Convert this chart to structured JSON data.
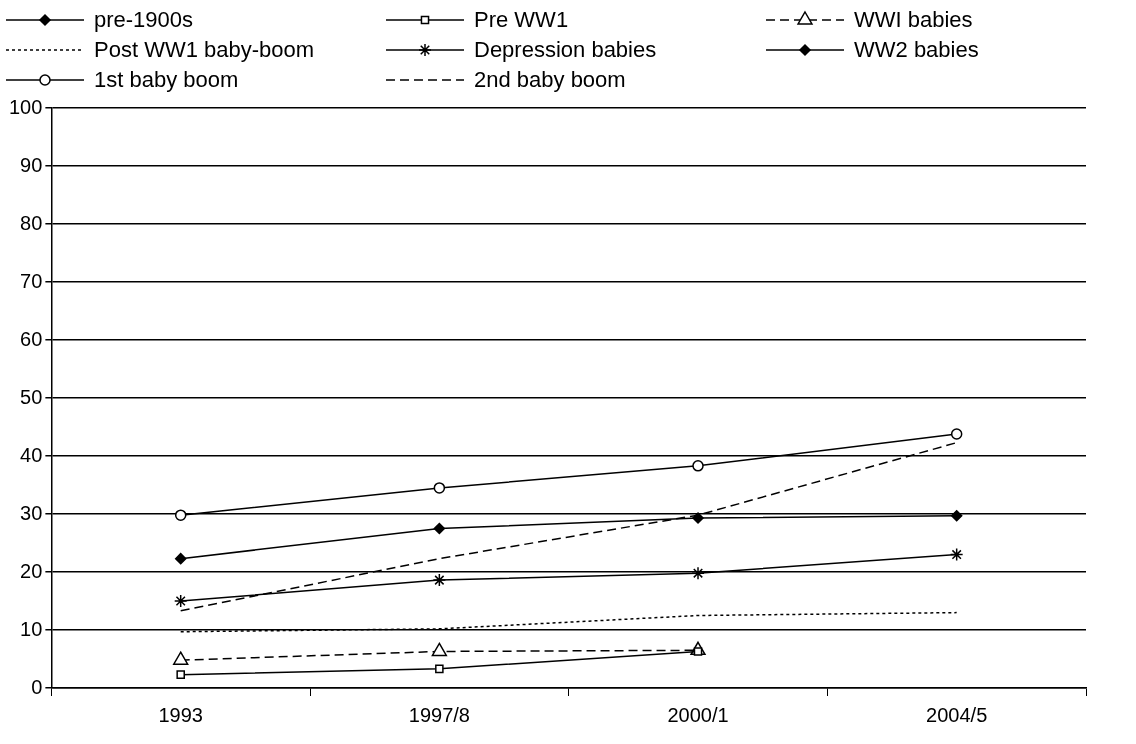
{
  "chart_data": {
    "type": "line",
    "categories": [
      "1993",
      "1997/8",
      "2000/1",
      "2004/5"
    ],
    "series": [
      {
        "name": "pre-1900s",
        "color": "#000000",
        "marker": "diamond",
        "line_style": "solid",
        "values": [
          null,
          null,
          null,
          null
        ]
      },
      {
        "name": "Pre WW1",
        "color": "#000000",
        "marker": "square",
        "line_style": "solid",
        "values": [
          2.3,
          3.3,
          6.3,
          null
        ]
      },
      {
        "name": "WWI babies",
        "color": "#000000",
        "marker": "triangle",
        "line_style": "dashed",
        "values": [
          4.8,
          6.3,
          6.5,
          null
        ]
      },
      {
        "name": "Post WW1 baby-boom",
        "color": "#000000",
        "marker": "none",
        "line_style": "dotted",
        "values": [
          9.7,
          10.2,
          12.5,
          13
        ]
      },
      {
        "name": "Depression babies",
        "color": "#000000",
        "marker": "cross",
        "line_style": "solid",
        "values": [
          15,
          18.6,
          19.8,
          23
        ]
      },
      {
        "name": "WW2 babies",
        "color": "#000000",
        "marker": "diamond",
        "line_style": "solid",
        "values": [
          22.3,
          27.5,
          29.3,
          29.7
        ]
      },
      {
        "name": "1st baby boom",
        "color": "#000000",
        "marker": "circle",
        "line_style": "solid",
        "values": [
          29.8,
          34.5,
          38.3,
          43.8
        ]
      },
      {
        "name": "2nd baby boom",
        "color": "#000000",
        "marker": "none",
        "line_style": "dashed",
        "values": [
          13.3,
          22.3,
          29.8,
          42.3
        ]
      }
    ],
    "ylim": [
      0,
      100
    ],
    "yticks": [
      0,
      10,
      20,
      30,
      40,
      50,
      60,
      70,
      80,
      90,
      100
    ],
    "grid": "y",
    "legend": "top"
  }
}
